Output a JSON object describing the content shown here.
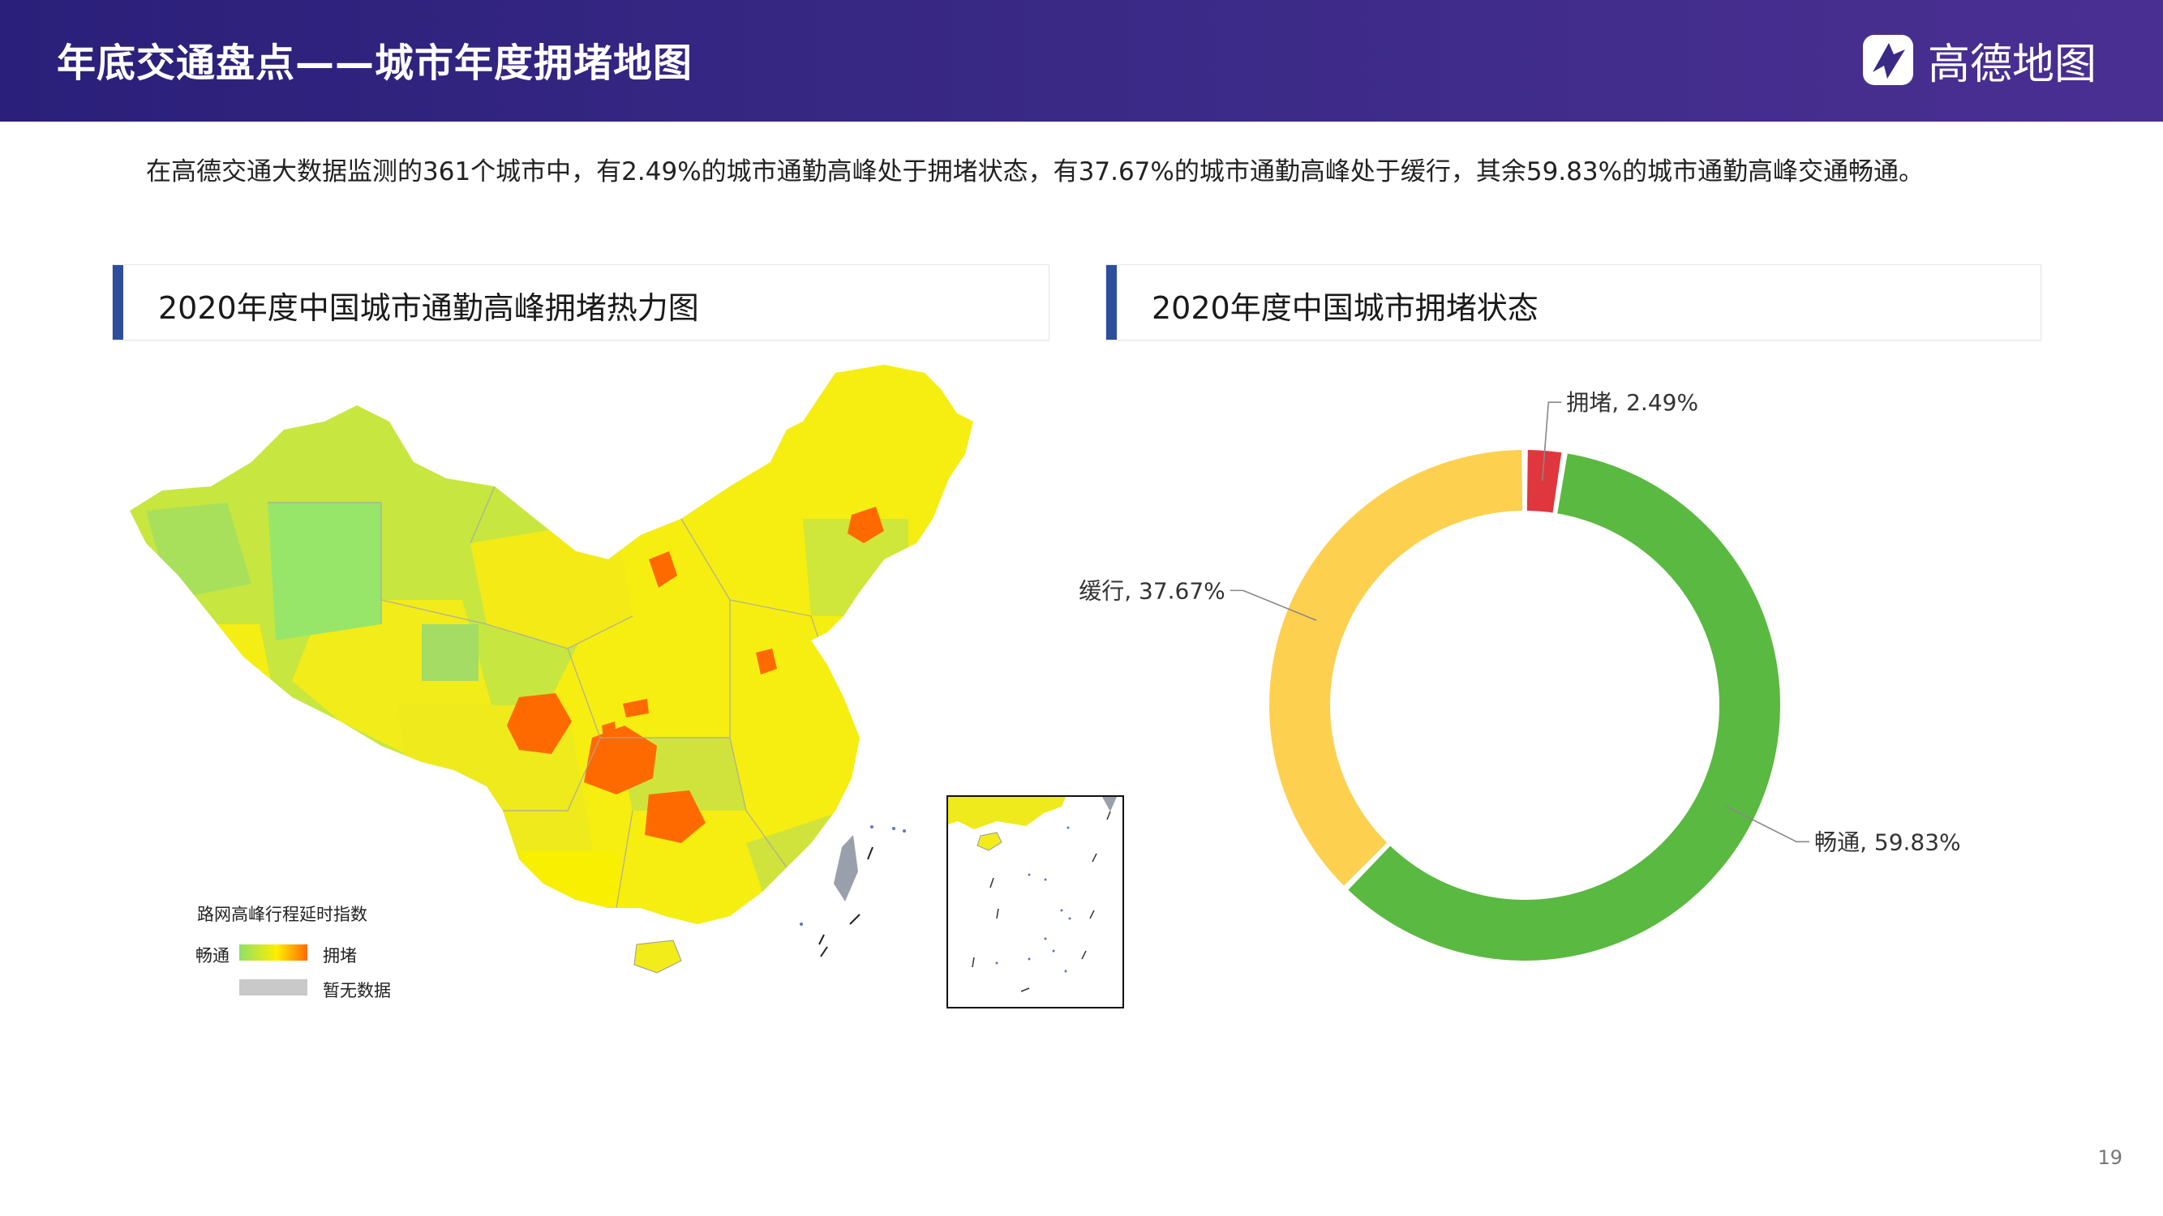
{
  "header": {
    "title": "年底交通盘点——城市年度拥堵地图",
    "brand_name": "高德地图"
  },
  "intro": "在高德交通大数据监测的361个城市中，有2.49%的城市通勤高峰处于拥堵状态，有37.67%的城市通勤高峰处于缓行，其余59.83%的城市通勤高峰交通畅通。",
  "map_panel": {
    "title": "2020年度中国城市通勤高峰拥堵热力图",
    "legend": {
      "title": "路网高峰行程延时指数",
      "low_label": "畅通",
      "high_label": "拥堵",
      "na_label": "暂无数据"
    }
  },
  "donut_panel": {
    "title": "2020年度中国城市拥堵状态"
  },
  "chart_data": {
    "type": "pie",
    "title": "2020年度中国城市拥堵状态",
    "slices": [
      {
        "label": "拥堵",
        "value": 2.49,
        "display": "拥堵, 2.49%",
        "color": "#e0363d"
      },
      {
        "label": "畅通",
        "value": 59.83,
        "display": "畅通, 59.83%",
        "color": "#5ab940"
      },
      {
        "label": "缓行",
        "value": 37.67,
        "display": "缓行, 37.67%",
        "color": "#fdd04f"
      }
    ],
    "donut": true,
    "start_angle_deg": 0,
    "direction": "clockwise"
  },
  "colors": {
    "header": "#2a1f7a",
    "panel_bar": "#2c4e9c",
    "map_congested": "#ff6a00",
    "map_slow": "#ffee00",
    "map_smooth": "#c8e640"
  },
  "page_number": "19"
}
